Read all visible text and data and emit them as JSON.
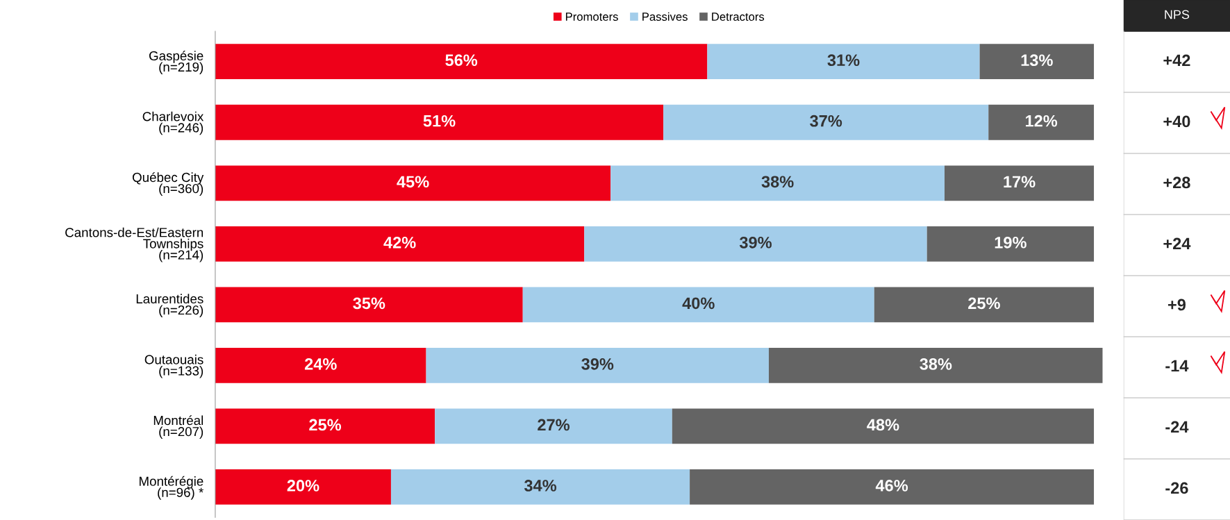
{
  "chart_data": [
    {
      "type": "bar",
      "orientation": "horizontal",
      "stacked": true,
      "legend": "top",
      "grid": false,
      "categories": [
        "Gaspésie\n(n=219)",
        "Charlevoix\n(n=246)",
        "Québec City\n(n=360)",
        "Cantons-de-Est/Eastern\nTownships\n(n=214)",
        "Laurentides\n(n=226)",
        "Outaouais\n(n=133)",
        "Montréal\n(n=207)",
        "Montérégie\n(n=96) *"
      ],
      "series": [
        {
          "name": "Promoters",
          "color": "#ee0019",
          "values": [
            56,
            51,
            45,
            42,
            35,
            24,
            25,
            20
          ],
          "value_labels": [
            "56%",
            "51%",
            "45%",
            "42%",
            "35%",
            "24%",
            "25%",
            "20%"
          ]
        },
        {
          "name": "Passives",
          "color": "#a3cdea",
          "values": [
            31,
            37,
            38,
            39,
            40,
            39,
            27,
            34
          ],
          "value_labels": [
            "31%",
            "37%",
            "38%",
            "39%",
            "40%",
            "39%",
            "27%",
            "34%"
          ]
        },
        {
          "name": "Detractors",
          "color": "#646464",
          "values": [
            13,
            12,
            17,
            19,
            25,
            38,
            48,
            46
          ],
          "value_labels": [
            "13%",
            "12%",
            "17%",
            "19%",
            "25%",
            "38%",
            "48%",
            "46%"
          ]
        }
      ]
    },
    {
      "type": "other",
      "title": "NPS",
      "annotations": [
        "+42",
        "+40",
        "+28",
        "+24",
        "+9",
        "-14",
        "-24",
        "-26"
      ]
    }
  ]
}
